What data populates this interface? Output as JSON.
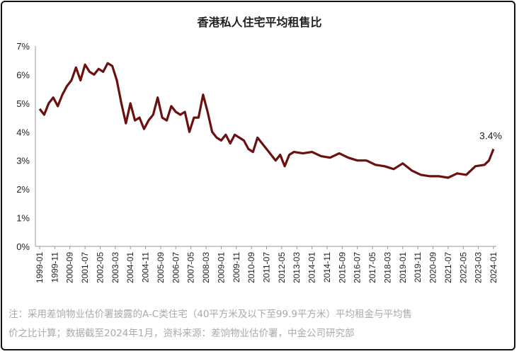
{
  "chart_data": {
    "type": "line",
    "title": "香港私人住宅平均租售比",
    "xlabel": "",
    "ylabel": "",
    "ylim": [
      0,
      7
    ],
    "yticks": [
      "0%",
      "1%",
      "2%",
      "3%",
      "4%",
      "5%",
      "6%",
      "7%"
    ],
    "xticks": [
      "1999-01",
      "1999-11",
      "2000-09",
      "2001-07",
      "2002-05",
      "2003-03",
      "2004-01",
      "2004-11",
      "2005-09",
      "2006-07",
      "2007-05",
      "2008-03",
      "2009-01",
      "2009-11",
      "2010-09",
      "2011-07",
      "2012-05",
      "2013-03",
      "2014-01",
      "2014-11",
      "2015-09",
      "2016-07",
      "2017-05",
      "2018-03",
      "2019-01",
      "2019-11",
      "2020-09",
      "2021-07",
      "2022-05",
      "2023-03",
      "2024-01"
    ],
    "grid": false,
    "color": "#6b0f0f",
    "annotation": "3.4%",
    "series": [
      {
        "x": [
          "1999-01",
          "1999-04",
          "1999-07",
          "1999-10",
          "2000-01",
          "2000-04",
          "2000-07",
          "2000-10",
          "2001-01",
          "2001-04",
          "2001-07",
          "2001-10",
          "2002-01",
          "2002-04",
          "2002-07",
          "2002-10",
          "2003-01",
          "2003-04",
          "2003-07",
          "2003-10",
          "2004-01",
          "2004-04",
          "2004-07",
          "2004-10",
          "2005-01",
          "2005-04",
          "2005-07",
          "2005-10",
          "2006-01",
          "2006-04",
          "2006-07",
          "2006-10",
          "2007-01",
          "2007-04",
          "2007-07",
          "2007-10",
          "2008-01",
          "2008-04",
          "2008-07",
          "2008-10",
          "2009-01",
          "2009-04",
          "2009-07",
          "2009-10",
          "2010-01",
          "2010-04",
          "2010-07",
          "2010-10",
          "2011-01",
          "2011-04",
          "2011-07",
          "2011-10",
          "2012-01",
          "2012-04",
          "2012-07",
          "2012-10",
          "2013-01",
          "2013-07",
          "2014-01",
          "2014-07",
          "2015-01",
          "2015-07",
          "2016-01",
          "2016-07",
          "2017-01",
          "2017-07",
          "2018-01",
          "2018-07",
          "2019-01",
          "2019-07",
          "2020-01",
          "2020-07",
          "2021-01",
          "2021-07",
          "2022-01",
          "2022-07",
          "2023-01",
          "2023-07",
          "2023-10",
          "2024-01"
        ],
        "values": [
          4.8,
          4.6,
          5.0,
          5.2,
          4.9,
          5.3,
          5.6,
          5.8,
          6.25,
          5.8,
          6.35,
          6.1,
          6.0,
          6.2,
          6.1,
          6.4,
          6.3,
          5.8,
          5.0,
          4.3,
          5.0,
          4.4,
          4.5,
          4.1,
          4.4,
          4.6,
          5.2,
          4.5,
          4.4,
          4.9,
          4.7,
          4.6,
          4.7,
          4.0,
          4.5,
          4.5,
          5.3,
          4.7,
          4.0,
          3.8,
          3.7,
          3.9,
          3.6,
          3.9,
          3.8,
          3.7,
          3.4,
          3.3,
          3.8,
          3.6,
          3.4,
          3.2,
          3.0,
          3.2,
          2.8,
          3.2,
          3.3,
          3.25,
          3.3,
          3.15,
          3.1,
          3.25,
          3.1,
          3.0,
          3.0,
          2.85,
          2.8,
          2.7,
          2.9,
          2.65,
          2.5,
          2.45,
          2.45,
          2.4,
          2.55,
          2.5,
          2.8,
          2.85,
          3.0,
          3.4
        ]
      }
    ]
  },
  "note": {
    "line1": "注：采用差饷物业估价署披露的A-C类住宅（40平方米及以下至99.9平方米）平均租金与平均售",
    "line2": "价之比计算；数据截至2024年1月，资料来源：差饷物业估价署，中金公司研究部"
  }
}
